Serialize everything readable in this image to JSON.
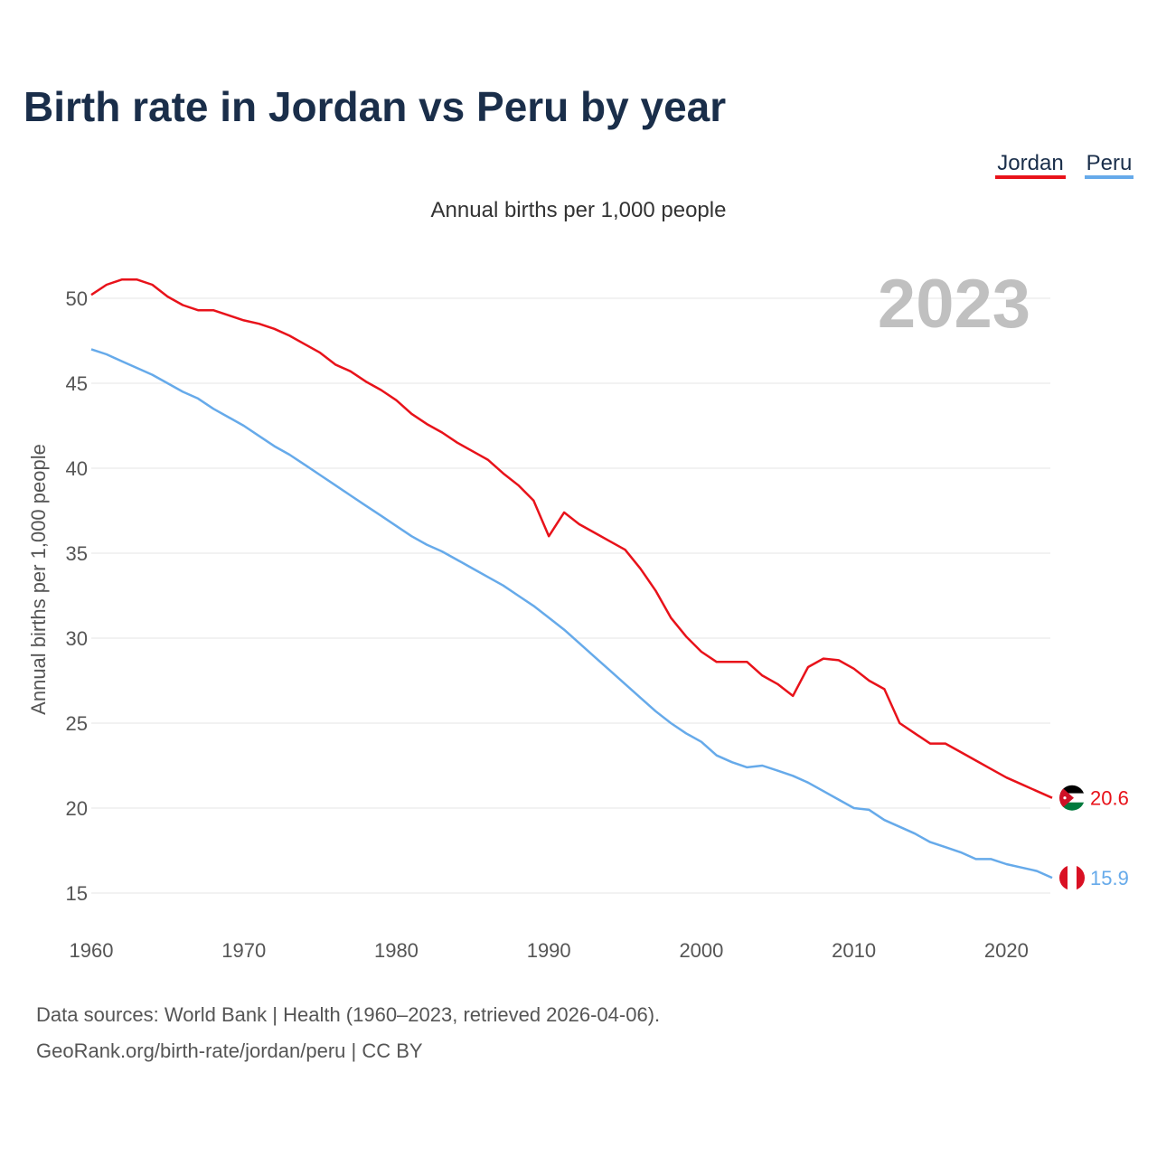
{
  "chart_data": {
    "type": "line",
    "title": "Birth rate in Jordan vs Peru by year",
    "subtitle": "Annual births per 1,000 people",
    "ylabel": "Annual births per 1,000 people",
    "xlabel": "",
    "highlight_year": "2023",
    "xlim": [
      1960,
      2023
    ],
    "ylim": [
      13.5,
      52
    ],
    "yticks": [
      15,
      20,
      25,
      30,
      35,
      40,
      45,
      50
    ],
    "xticks": [
      1960,
      1970,
      1980,
      1990,
      2000,
      2010,
      2020
    ],
    "legend_position": "top-right",
    "x": [
      1960,
      1961,
      1962,
      1963,
      1964,
      1965,
      1966,
      1967,
      1968,
      1969,
      1970,
      1971,
      1972,
      1973,
      1974,
      1975,
      1976,
      1977,
      1978,
      1979,
      1980,
      1981,
      1982,
      1983,
      1984,
      1985,
      1986,
      1987,
      1988,
      1989,
      1990,
      1991,
      1992,
      1993,
      1994,
      1995,
      1996,
      1997,
      1998,
      1999,
      2000,
      2001,
      2002,
      2003,
      2004,
      2005,
      2006,
      2007,
      2008,
      2009,
      2010,
      2011,
      2012,
      2013,
      2014,
      2015,
      2016,
      2017,
      2018,
      2019,
      2020,
      2021,
      2022,
      2023
    ],
    "series": [
      {
        "name": "Jordan",
        "color": "#e8121a",
        "end_label": "20.6",
        "flag": "jordan-flag",
        "values": [
          50.2,
          50.8,
          51.1,
          51.1,
          50.8,
          50.1,
          49.6,
          49.3,
          49.3,
          49.0,
          48.7,
          48.5,
          48.2,
          47.8,
          47.3,
          46.8,
          46.1,
          45.7,
          45.1,
          44.6,
          44.0,
          43.2,
          42.6,
          42.1,
          41.5,
          41.0,
          40.5,
          39.7,
          39.0,
          38.1,
          36.0,
          37.4,
          36.7,
          36.2,
          35.7,
          35.2,
          34.1,
          32.8,
          31.2,
          30.1,
          29.2,
          28.6,
          28.6,
          28.6,
          27.8,
          27.3,
          26.6,
          28.3,
          28.8,
          28.7,
          28.2,
          27.5,
          27.0,
          25.0,
          24.4,
          23.8,
          23.8,
          23.3,
          22.8,
          22.3,
          21.8,
          21.4,
          21.0,
          20.6
        ]
      },
      {
        "name": "Peru",
        "color": "#66aaea",
        "end_label": "15.9",
        "flag": "peru-flag",
        "values": [
          47.0,
          46.7,
          46.3,
          45.9,
          45.5,
          45.0,
          44.5,
          44.1,
          43.5,
          43.0,
          42.5,
          41.9,
          41.3,
          40.8,
          40.2,
          39.6,
          39.0,
          38.4,
          37.8,
          37.2,
          36.6,
          36.0,
          35.5,
          35.1,
          34.6,
          34.1,
          33.6,
          33.1,
          32.5,
          31.9,
          31.2,
          30.5,
          29.7,
          28.9,
          28.1,
          27.3,
          26.5,
          25.7,
          25.0,
          24.4,
          23.9,
          23.1,
          22.7,
          22.4,
          22.5,
          22.2,
          21.9,
          21.5,
          21.0,
          20.5,
          20.0,
          19.9,
          19.3,
          18.9,
          18.5,
          18.0,
          17.7,
          17.4,
          17.0,
          17.0,
          16.7,
          16.5,
          16.3,
          15.9
        ]
      }
    ],
    "legend": [
      "Jordan",
      "Peru"
    ]
  },
  "source": {
    "line1": "Data sources: World Bank | Health (1960–2023, retrieved 2026-04-06).",
    "line2": "GeoRank.org/birth-rate/jordan/peru | CC BY"
  }
}
